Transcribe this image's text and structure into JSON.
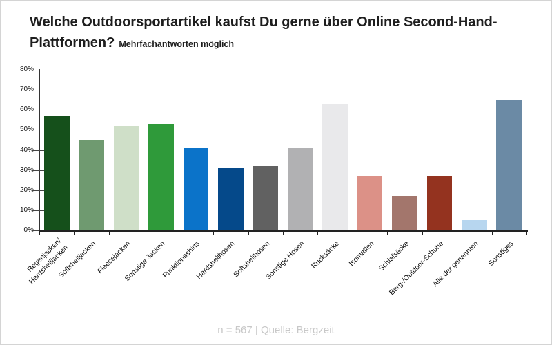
{
  "title": {
    "text": "Welche Outdoorsportartikel kaufst Du gerne über Online Second-Hand-Plattformen?",
    "subtitle": "Mehrfachantworten möglich"
  },
  "footer": {
    "text": "n = 567 | Quelle: Bergzeit"
  },
  "chart_data": {
    "type": "bar",
    "title": "Welche Outdoorsportartikel kaufst Du gerne über Online Second-Hand-Plattformen?",
    "subtitle": "Mehrfachantworten möglich",
    "categories": [
      "Regenjacken/\nHardshelljacken",
      "Softshelljacken",
      "Fleecejacken",
      "Sonstige Jacken",
      "Funktionsshirts",
      "Hardshellhosen",
      "Softshellhosen",
      "Sonstige Hosen",
      "Rucksäcke",
      "Isomatten",
      "Schlafsäcke",
      "Berg-/Outdoor-Schuhe",
      "Alle der genannten",
      "Sonstiges"
    ],
    "values": [
      57,
      45,
      52,
      53,
      41,
      31,
      32,
      41,
      63,
      27,
      17,
      27,
      5,
      65
    ],
    "unit": "%",
    "colors": [
      "#15501b",
      "#6f9a70",
      "#cfdfc8",
      "#2f9a3a",
      "#0b73c9",
      "#05498a",
      "#616161",
      "#b1b1b3",
      "#e9e9eb",
      "#dc9187",
      "#a3766c",
      "#94331f",
      "#b7d6ef",
      "#6b8aa5"
    ],
    "xlabel": "",
    "ylabel": "",
    "ylim": [
      0,
      80
    ],
    "yticks": [
      "0%",
      "10%",
      "20%",
      "30%",
      "40%",
      "50%",
      "60%",
      "70%",
      "80%"
    ],
    "grid": false,
    "legend": "none",
    "source": "n = 567 | Quelle: Bergzeit"
  }
}
